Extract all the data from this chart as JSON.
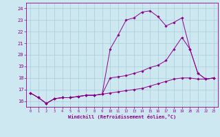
{
  "xlabel": "Windchill (Refroidissement éolien,°C)",
  "ylim": [
    15.5,
    24.5
  ],
  "xlim": [
    -0.5,
    23.5
  ],
  "yticks": [
    16,
    17,
    18,
    19,
    20,
    21,
    22,
    23,
    24
  ],
  "xticks": [
    0,
    1,
    2,
    3,
    4,
    5,
    6,
    7,
    8,
    9,
    10,
    11,
    12,
    13,
    14,
    15,
    16,
    17,
    18,
    19,
    20,
    21,
    22,
    23
  ],
  "bg_color": "#cde8f0",
  "line_color": "#8b008b",
  "grid_color": "#aacdd8",
  "line1_x": [
    0,
    1,
    2,
    3,
    4,
    5,
    6,
    7,
    8,
    9,
    10,
    11,
    12,
    13,
    14,
    15,
    16,
    17,
    18,
    19,
    20,
    21,
    22,
    23
  ],
  "line1_y": [
    16.7,
    16.3,
    15.8,
    16.2,
    16.3,
    16.3,
    16.4,
    16.5,
    16.5,
    16.6,
    20.5,
    21.7,
    23.0,
    23.2,
    23.7,
    23.8,
    23.3,
    22.5,
    22.8,
    23.2,
    20.5,
    18.4,
    17.9,
    18.0
  ],
  "line2_x": [
    0,
    1,
    2,
    3,
    4,
    5,
    6,
    7,
    8,
    9,
    10,
    11,
    12,
    13,
    14,
    15,
    16,
    17,
    18,
    19,
    20,
    21,
    22,
    23
  ],
  "line2_y": [
    16.7,
    16.3,
    15.8,
    16.2,
    16.3,
    16.3,
    16.4,
    16.5,
    16.5,
    16.6,
    18.0,
    18.1,
    18.2,
    18.4,
    18.6,
    18.9,
    19.1,
    19.5,
    20.5,
    21.5,
    20.5,
    18.4,
    17.9,
    18.0
  ],
  "line3_x": [
    0,
    1,
    2,
    3,
    4,
    5,
    6,
    7,
    8,
    9,
    10,
    11,
    12,
    13,
    14,
    15,
    16,
    17,
    18,
    19,
    20,
    21,
    22,
    23
  ],
  "line3_y": [
    16.7,
    16.3,
    15.8,
    16.2,
    16.3,
    16.3,
    16.4,
    16.5,
    16.5,
    16.6,
    16.7,
    16.8,
    16.9,
    17.0,
    17.1,
    17.3,
    17.5,
    17.7,
    17.9,
    18.0,
    18.0,
    17.9,
    17.9,
    18.0
  ]
}
